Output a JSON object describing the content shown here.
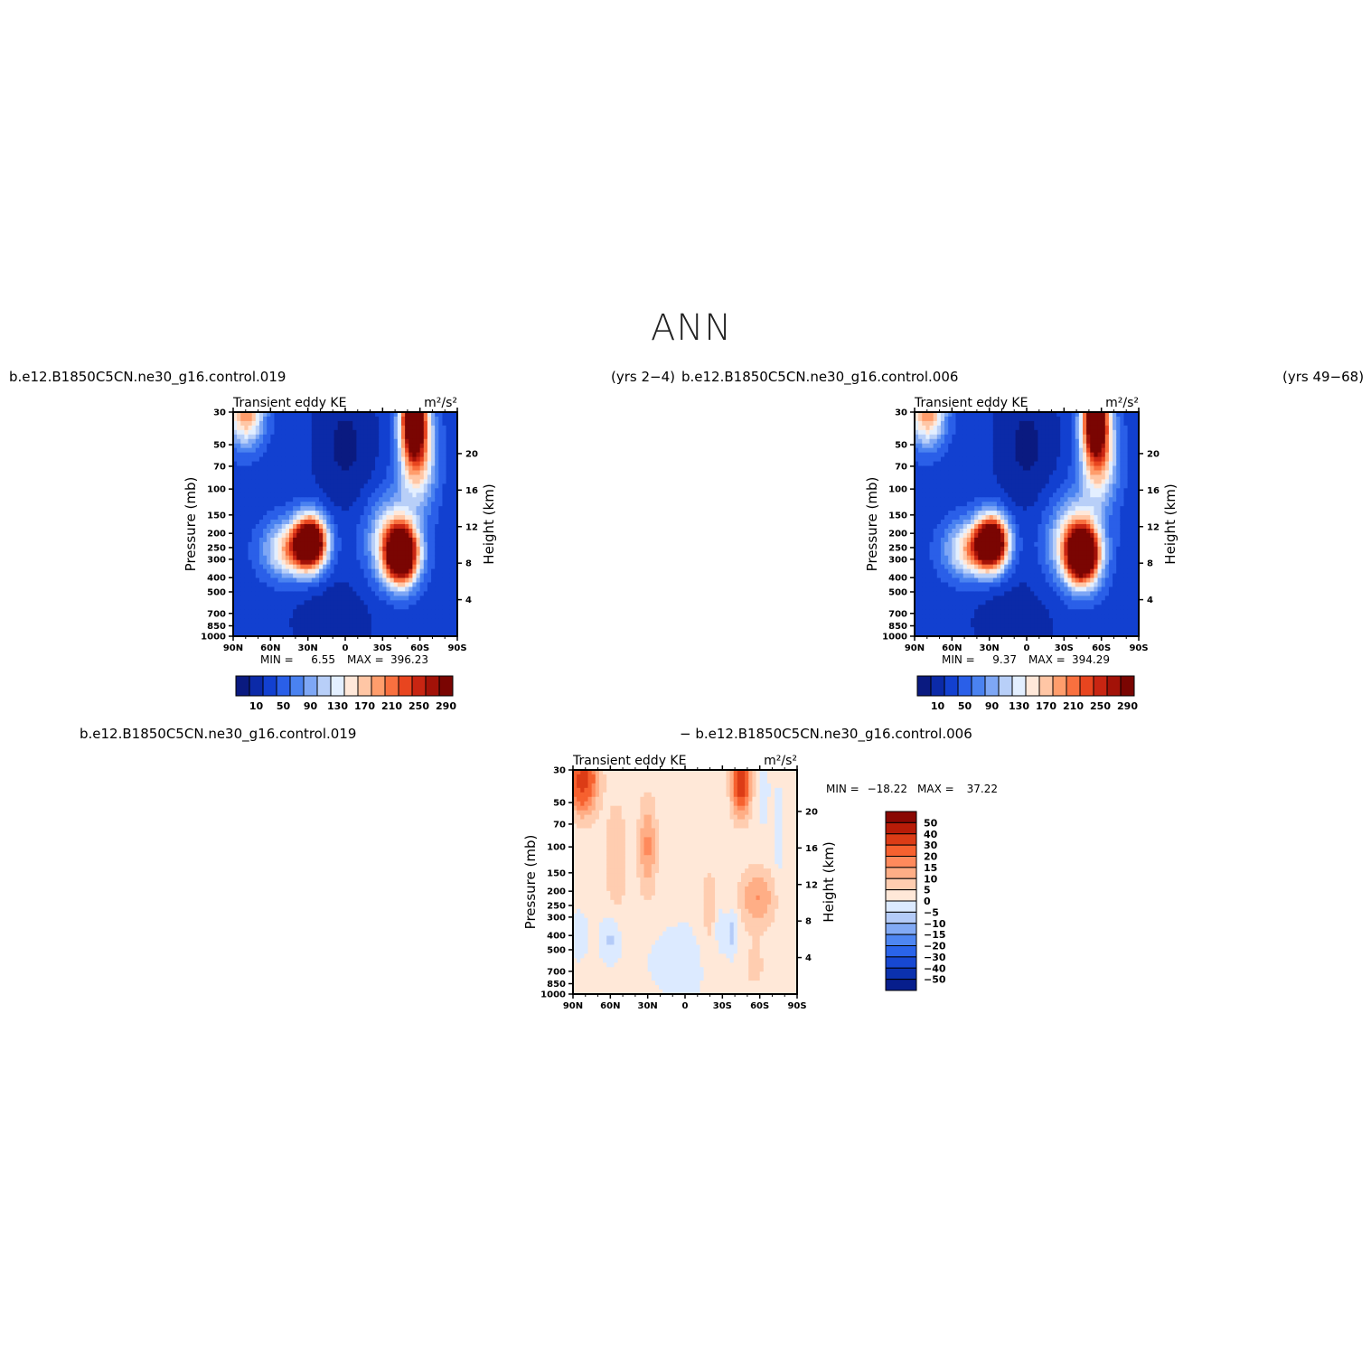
{
  "page": {
    "title": "ANN"
  },
  "panels": {
    "p1": {
      "case": "b.e12.B1850C5CN.ne30_g16.control.019",
      "years": "(yrs 2−4)"
    },
    "p2": {
      "case": "b.e12.B1850C5CN.ne30_g16.control.006",
      "years": "(yrs 49−68)"
    },
    "p3": {
      "case_a": "b.e12.B1850C5CN.ne30_g16.control.019",
      "case_b": "− b.e12.B1850C5CN.ne30_g16.control.006"
    }
  },
  "colors": {
    "levels_main": [
      "#0a1a80",
      "#0b2aa8",
      "#1240d0",
      "#2a5fe8",
      "#4a82f0",
      "#7ea7f5",
      "#b8cff8",
      "#e3efff",
      "#ffe8d9",
      "#ffc6a5",
      "#ff9d6c",
      "#f9703f",
      "#e8451f",
      "#c82512",
      "#a31208",
      "#7a0502"
    ],
    "levels_diff": [
      "#071e8c",
      "#0b31ae",
      "#1748d2",
      "#2a64ea",
      "#4e86f2",
      "#82aaf5",
      "#b4cbf8",
      "#dceaff",
      "#ffe8d8",
      "#ffcdb0",
      "#ffae86",
      "#ff8a5c",
      "#f6612f",
      "#dc3c16",
      "#b81c08",
      "#8a0803"
    ]
  },
  "chart_data": [
    {
      "type": "heatmap",
      "title": "Transient eddy KE",
      "units": "m²/s²",
      "ylabel": "Pressure (mb)",
      "ylabel_right": "Height (km)",
      "x_ticks": [
        "90N",
        "60N",
        "30N",
        "0",
        "30S",
        "60S",
        "90S"
      ],
      "y_ticks": [
        30,
        50,
        70,
        100,
        150,
        200,
        250,
        300,
        400,
        500,
        700,
        850,
        1000
      ],
      "y_right_ticks": [
        20,
        16,
        12,
        8,
        4
      ],
      "y_scale": "log",
      "min_label": "MIN =",
      "min_value": "6.55",
      "max_label": "MAX =",
      "max_value": "396.23",
      "colorbar_labels": [
        "10",
        "50",
        "90",
        "130",
        "170",
        "210",
        "250",
        "290"
      ],
      "colorbar_levels": [
        10,
        30,
        50,
        70,
        90,
        110,
        130,
        150,
        170,
        190,
        210,
        230,
        250,
        270,
        290
      ],
      "features": [
        {
          "lat": 28,
          "p": 220,
          "value": 396
        },
        {
          "lat": -45,
          "p": 280,
          "value": 390
        },
        {
          "lat": -55,
          "p": 30,
          "value": 330
        },
        {
          "lat": 80,
          "p": 30,
          "value": 180
        },
        {
          "lat": 0,
          "p": 60,
          "value": 6.55
        }
      ]
    },
    {
      "type": "heatmap",
      "title": "Transient eddy KE",
      "units": "m²/s²",
      "ylabel": "Pressure (mb)",
      "ylabel_right": "Height (km)",
      "x_ticks": [
        "90N",
        "60N",
        "30N",
        "0",
        "30S",
        "60S",
        "90S"
      ],
      "y_ticks": [
        30,
        50,
        70,
        100,
        150,
        200,
        250,
        300,
        400,
        500,
        700,
        850,
        1000
      ],
      "y_right_ticks": [
        20,
        16,
        12,
        8,
        4
      ],
      "y_scale": "log",
      "min_label": "MIN =",
      "min_value": "9.37",
      "max_label": "MAX =",
      "max_value": "394.29",
      "colorbar_labels": [
        "10",
        "50",
        "90",
        "130",
        "170",
        "210",
        "250",
        "290"
      ],
      "colorbar_levels": [
        10,
        30,
        50,
        70,
        90,
        110,
        130,
        150,
        170,
        190,
        210,
        230,
        250,
        270,
        290
      ],
      "features": [
        {
          "lat": 28,
          "p": 220,
          "value": 394
        },
        {
          "lat": -45,
          "p": 280,
          "value": 390
        },
        {
          "lat": -55,
          "p": 30,
          "value": 320
        },
        {
          "lat": 0,
          "p": 60,
          "value": 9.37
        }
      ]
    },
    {
      "type": "heatmap",
      "title": "Transient eddy KE",
      "units": "m²/s²",
      "ylabel": "Pressure (mb)",
      "ylabel_right": "Height (km)",
      "x_ticks": [
        "90N",
        "60N",
        "30N",
        "0",
        "30S",
        "60S",
        "90S"
      ],
      "y_ticks": [
        30,
        50,
        70,
        100,
        150,
        200,
        250,
        300,
        400,
        500,
        700,
        850,
        1000
      ],
      "y_right_ticks": [
        20,
        16,
        12,
        8,
        4
      ],
      "y_scale": "log",
      "min_label": "MIN =",
      "min_value": "−18.22",
      "max_label": "MAX =",
      "max_value": "37.22",
      "colorbar_labels": [
        "50",
        "40",
        "30",
        "20",
        "15",
        "10",
        "5",
        "0",
        "−5",
        "−10",
        "−15",
        "−20",
        "−30",
        "−40",
        "−50"
      ],
      "colorbar_levels": [
        -50,
        -40,
        -30,
        -20,
        -15,
        -10,
        -5,
        0,
        5,
        10,
        15,
        20,
        30,
        40,
        50
      ],
      "features": [
        {
          "lat": 80,
          "p": 35,
          "value": 30
        },
        {
          "lat": -45,
          "p": 35,
          "value": 37.22
        },
        {
          "lat": 30,
          "p": 100,
          "value": 15
        },
        {
          "lat": -55,
          "p": 220,
          "value": 12
        },
        {
          "lat": -40,
          "p": 350,
          "value": -15
        }
      ]
    }
  ]
}
